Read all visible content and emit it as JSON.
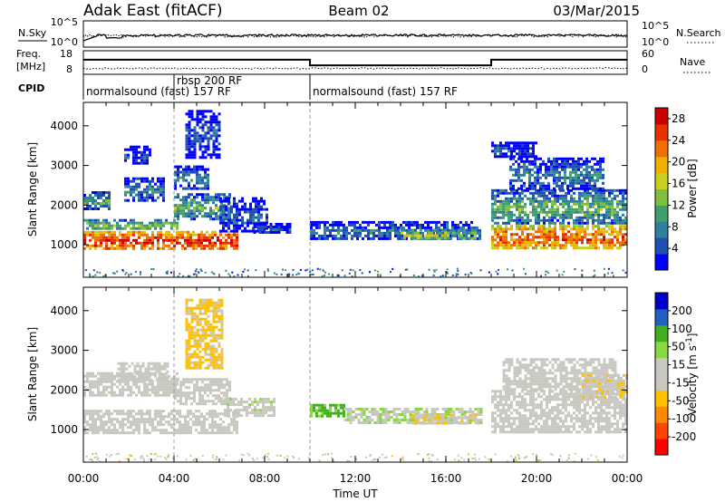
{
  "header": {
    "station": "Adak East (fitACF)",
    "beam": "Beam 02",
    "date": "03/Mar/2015"
  },
  "noise_panel": {
    "left_label": "N.Sky",
    "right_label": "N.Search",
    "left_ticks": [
      "10^5",
      "10^0"
    ],
    "right_ticks": [
      "10^5",
      "10^0"
    ]
  },
  "freq_panel": {
    "left_label_1": "Freq.",
    "left_label_2": "[MHz]",
    "right_label": "Nave",
    "left_ticks": [
      "18",
      "8"
    ],
    "right_ticks": [
      "60",
      "0"
    ],
    "freq_steps": [
      {
        "start_hour": 0.0,
        "end_hour": 10.0,
        "mhz": 14.2
      },
      {
        "start_hour": 10.0,
        "end_hour": 18.0,
        "mhz": 11.8
      },
      {
        "start_hour": 18.0,
        "end_hour": 24.0,
        "mhz": 14.2
      }
    ]
  },
  "cpid": {
    "label": "CPID",
    "segments": [
      {
        "label": "normalsound (fast) 157 RF",
        "start_hour": 0.0
      },
      {
        "label": "rbsp 200 RF",
        "start_hour": 4.0
      },
      {
        "label": "normalsound (fast) 157 RF",
        "start_hour": 10.0
      }
    ]
  },
  "chart_data": [
    {
      "type": "heatmap",
      "ylabel": "Slant Range [km]",
      "xlabel": "Time UT",
      "x_ticks": [
        "00:00",
        "04:00",
        "08:00",
        "12:00",
        "16:00",
        "20:00",
        "00:00"
      ],
      "x_range_hours": [
        0,
        24
      ],
      "y_ticks": [
        1000,
        2000,
        3000,
        4000
      ],
      "y_range_km": [
        180,
        4590
      ],
      "colorbar": {
        "label": "Power [dB]",
        "ticks": [
          "28",
          "24",
          "20",
          "16",
          "12",
          "8",
          "4"
        ],
        "range": [
          0,
          30
        ],
        "colors": [
          "#0000ff",
          "#1f4fb0",
          "#2f7f9f",
          "#3f9f6f",
          "#7fbf3f",
          "#c8d020",
          "#f0b000",
          "#f07000",
          "#e83000",
          "#cc0000"
        ]
      },
      "regions": [
        {
          "t0": 0.0,
          "t1": 6.8,
          "r0": 900,
          "r1": 1350,
          "value": 27
        },
        {
          "t0": 0.0,
          "t1": 4.2,
          "r0": 1350,
          "r1": 1650,
          "value": 14
        },
        {
          "t0": 0.0,
          "t1": 1.2,
          "r0": 1850,
          "r1": 2350,
          "value": 11
        },
        {
          "t0": 1.8,
          "t1": 3.6,
          "r0": 2100,
          "r1": 2700,
          "value": 9
        },
        {
          "t0": 1.8,
          "t1": 3.0,
          "r0": 3000,
          "r1": 3500,
          "value": 5
        },
        {
          "t0": 4.0,
          "t1": 6.5,
          "r0": 1600,
          "r1": 2300,
          "value": 12
        },
        {
          "t0": 4.0,
          "t1": 5.5,
          "r0": 2400,
          "r1": 3000,
          "value": 9
        },
        {
          "t0": 4.5,
          "t1": 6.0,
          "r0": 3200,
          "r1": 4400,
          "value": 5
        },
        {
          "t0": 6.0,
          "t1": 8.2,
          "r0": 1300,
          "r1": 2200,
          "value": 6
        },
        {
          "t0": 7.5,
          "t1": 9.2,
          "r0": 1250,
          "r1": 1550,
          "value": 5
        },
        {
          "t0": 10.0,
          "t1": 17.6,
          "r0": 1100,
          "r1": 1600,
          "value": 8
        },
        {
          "t0": 14.0,
          "t1": 17.4,
          "r0": 1150,
          "r1": 1400,
          "value": 16
        },
        {
          "t0": 18.0,
          "t1": 24.0,
          "r0": 900,
          "r1": 1500,
          "value": 25
        },
        {
          "t0": 18.0,
          "t1": 24.0,
          "r0": 1500,
          "r1": 2400,
          "value": 12
        },
        {
          "t0": 18.8,
          "t1": 23.0,
          "r0": 2400,
          "r1": 3200,
          "value": 8
        },
        {
          "t0": 18.0,
          "t1": 20.0,
          "r0": 3200,
          "r1": 3600,
          "value": 5
        }
      ]
    },
    {
      "type": "heatmap",
      "ylabel": "Slant Range [km]",
      "xlabel": "Time UT",
      "x_ticks": [
        "00:00",
        "04:00",
        "08:00",
        "12:00",
        "16:00",
        "20:00",
        "00:00"
      ],
      "x_range_hours": [
        0,
        24
      ],
      "y_ticks": [
        1000,
        2000,
        3000,
        4000
      ],
      "y_range_km": [
        180,
        4590
      ],
      "colorbar": {
        "label": "Velocity [m s^-1]",
        "ticks": [
          "200",
          "100",
          "50",
          "15",
          "-15",
          "-50",
          "-100",
          "-200"
        ],
        "range": [
          -250,
          250
        ],
        "colors": [
          "#ff0000",
          "#ff4400",
          "#ff8800",
          "#ffc000",
          "#c8c8c0",
          "#c8c8c0",
          "#88d840",
          "#40b020",
          "#2060c0",
          "#0000cc"
        ]
      },
      "regions": [
        {
          "t0": 0.0,
          "t1": 6.8,
          "r0": 900,
          "r1": 1500,
          "value": 0
        },
        {
          "t0": 0.0,
          "t1": 4.2,
          "r0": 1850,
          "r1": 2450,
          "value": 0
        },
        {
          "t0": 1.5,
          "t1": 3.8,
          "r0": 2200,
          "r1": 2700,
          "value": 0
        },
        {
          "t0": 4.0,
          "t1": 6.5,
          "r0": 1600,
          "r1": 2300,
          "value": -30
        },
        {
          "t0": 4.5,
          "t1": 6.2,
          "r0": 2500,
          "r1": 4300,
          "value": -60
        },
        {
          "t0": 6.2,
          "t1": 8.5,
          "r0": 1300,
          "r1": 1800,
          "value": 35
        },
        {
          "t0": 10.0,
          "t1": 11.5,
          "r0": 1300,
          "r1": 1650,
          "value": 110
        },
        {
          "t0": 11.5,
          "t1": 17.6,
          "r0": 1150,
          "r1": 1550,
          "value": 45
        },
        {
          "t0": 14.5,
          "t1": 17.5,
          "r0": 1150,
          "r1": 1400,
          "value": -40
        },
        {
          "t0": 18.0,
          "t1": 24.0,
          "r0": 900,
          "r1": 2000,
          "value": 0
        },
        {
          "t0": 18.5,
          "t1": 23.5,
          "r0": 2000,
          "r1": 2800,
          "value": 0
        },
        {
          "t0": 22.0,
          "t1": 24.0,
          "r0": 1800,
          "r1": 2400,
          "value": -40
        }
      ]
    }
  ]
}
